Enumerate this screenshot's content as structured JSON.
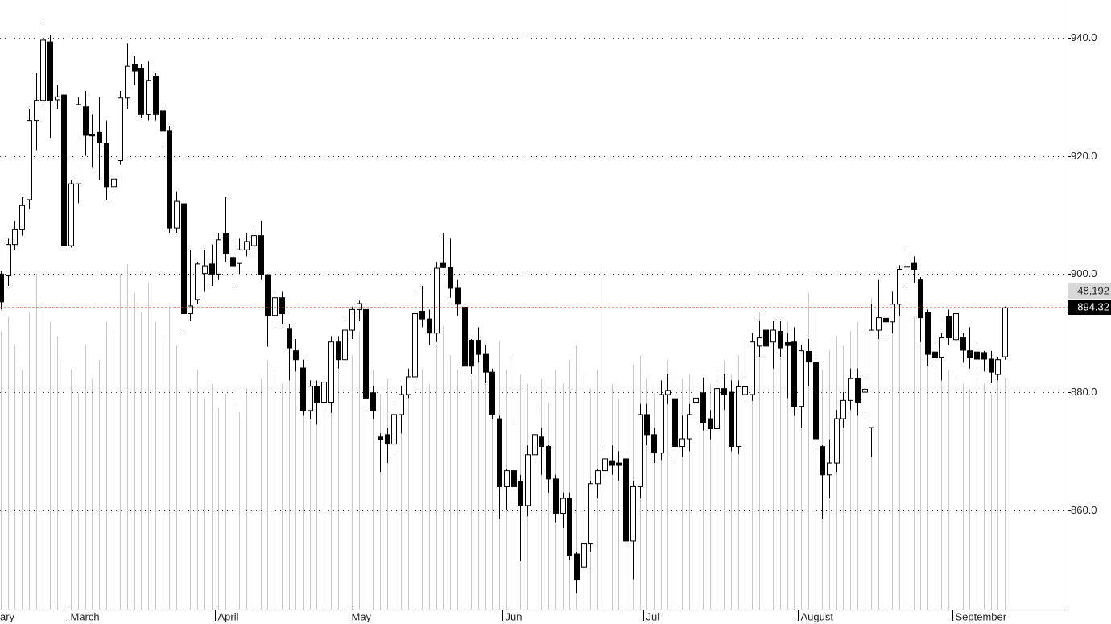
{
  "chart_data": {
    "type": "candlestick",
    "categories": [
      "ary",
      null,
      null,
      null,
      null,
      null,
      null,
      null,
      null,
      null,
      "March",
      null,
      null,
      null,
      null,
      null,
      null,
      null,
      null,
      null,
      null,
      null,
      null,
      null,
      null,
      null,
      null,
      null,
      null,
      null,
      null,
      "April",
      null,
      null,
      null,
      null,
      null,
      null,
      null,
      null,
      null,
      null,
      null,
      null,
      null,
      null,
      null,
      null,
      null,
      null,
      "May",
      null,
      null,
      null,
      null,
      null,
      null,
      null,
      null,
      null,
      null,
      null,
      null,
      null,
      null,
      null,
      null,
      null,
      null,
      null,
      null,
      null,
      "Jun",
      null,
      null,
      null,
      null,
      null,
      null,
      null,
      null,
      null,
      null,
      null,
      null,
      null,
      null,
      null,
      null,
      null,
      null,
      null,
      "Jul",
      null,
      null,
      null,
      null,
      null,
      null,
      null,
      null,
      null,
      null,
      null,
      null,
      null,
      null,
      null,
      null,
      null,
      null,
      null,
      null,
      null,
      "August",
      null,
      null,
      null,
      null,
      null,
      null,
      null,
      null,
      null,
      null,
      null,
      null,
      null,
      null,
      null,
      null,
      null,
      null,
      null,
      null,
      null,
      "September",
      null,
      null,
      null,
      null,
      null,
      null,
      null
    ],
    "open": [
      900,
      899.7,
      905,
      907.5,
      912.6,
      926,
      929.4,
      939.3,
      929.5,
      930.3,
      904.8,
      915.3,
      928.3,
      923.6,
      924,
      922.2,
      914.8,
      919.2,
      929.8,
      935.5,
      934.8,
      927,
      933.4,
      927.6,
      924.2,
      907.8,
      911.9,
      893.3,
      895.7,
      900.1,
      901.7,
      900,
      906.8,
      902.8,
      901.8,
      904.1,
      904.8,
      906.5,
      899.9,
      893,
      896,
      890.8,
      887,
      884.1,
      876.9,
      881,
      878.3,
      878.3,
      888.5,
      885.5,
      890.5,
      894,
      894,
      879.9,
      872.4,
      872.8,
      871.2,
      876.2,
      879.6,
      882.6,
      893.7,
      892.4,
      890,
      901.8,
      901.1,
      897.6,
      894.4,
      888.8,
      888.8,
      886.4,
      883.4,
      875.5,
      864,
      866.7,
      864.9,
      860.8,
      869.4,
      872.4,
      870.8,
      865.3,
      859.5,
      862,
      852.6,
      850.4,
      854.3,
      864.5,
      866.7,
      868.4,
      868,
      868.7,
      854.8,
      864,
      876.2,
      872.8,
      869.7,
      879.6,
      878.9,
      870.8,
      872.1,
      878.3,
      879.9,
      875.5,
      873.8,
      880.6,
      880,
      870.8,
      879.6,
      879.6,
      887.8,
      890.5,
      888.5,
      890.3,
      888.4,
      888.5,
      877.6,
      886.9,
      885.1,
      870.8,
      866,
      868,
      875.5,
      878.6,
      882.3,
      880,
      874,
      890.5,
      892.5,
      891.9,
      894.9,
      901.2,
      901.8,
      899,
      893.5,
      886.8,
      885.8,
      892.8,
      888.9,
      889.2,
      887,
      886.8,
      886.7,
      885.6,
      883,
      886
    ],
    "high": [
      900.5,
      906,
      909,
      913,
      928,
      934,
      943,
      940.5,
      932,
      931,
      916,
      930,
      931,
      927,
      930,
      926,
      920,
      931,
      939,
      937,
      935.5,
      936,
      934,
      928,
      925,
      914,
      912,
      904,
      902,
      904,
      905,
      907,
      913,
      905,
      906,
      907,
      908,
      909,
      900,
      897,
      897,
      891.5,
      889,
      885.5,
      882,
      882,
      883,
      889.5,
      889.5,
      892,
      894.5,
      895.5,
      895,
      881,
      873,
      874,
      878,
      881,
      884,
      897,
      898,
      894,
      902,
      907,
      906,
      899,
      895,
      889,
      891,
      888,
      884,
      876,
      867,
      875,
      866,
      871,
      877,
      874,
      871,
      866,
      863,
      863,
      853,
      855,
      865,
      867,
      871,
      871,
      870,
      870,
      865,
      878,
      878,
      874,
      882,
      883,
      880,
      876,
      878,
      881,
      882.5,
      877,
      882,
      883,
      882,
      882,
      883,
      890,
      892,
      893.5,
      892,
      892,
      890,
      891,
      888,
      889,
      886,
      871,
      872,
      877,
      880,
      884,
      884,
      883,
      895,
      899,
      895,
      897,
      901.5,
      904.5,
      903,
      899.5,
      894,
      888,
      890,
      894,
      894,
      890,
      891,
      888,
      887,
      887,
      886,
      894.5
    ],
    "low": [
      894,
      898,
      904,
      906.5,
      911,
      921,
      928,
      923,
      928,
      904.8,
      904.5,
      912,
      920,
      918,
      916,
      912.5,
      912,
      918.5,
      928,
      932,
      926.5,
      926,
      926,
      922,
      907,
      907,
      890.5,
      892,
      895,
      897,
      898,
      899,
      902,
      898,
      900,
      903,
      903,
      899,
      887.7,
      891.7,
      891.5,
      882,
      883.5,
      876,
      875.5,
      874.5,
      877,
      876.5,
      884,
      884.5,
      889,
      892,
      877,
      875.5,
      866.5,
      868,
      870,
      873,
      879,
      882,
      891,
      888,
      888.5,
      901,
      896,
      893,
      884,
      883,
      885,
      881.5,
      875.5,
      858.5,
      860,
      861,
      851.4,
      859,
      868,
      866,
      863,
      858,
      857,
      851.5,
      846,
      850,
      853,
      862,
      865,
      866,
      865,
      854,
      848.3,
      862,
      871,
      868,
      868.5,
      878,
      868,
      869,
      870,
      876,
      873.5,
      872,
      872,
      877,
      870,
      869.5,
      878,
      878.5,
      886,
      886,
      884,
      886,
      879,
      876,
      874,
      881,
      870.5,
      858.5,
      862,
      866.5,
      874,
      877,
      876,
      876,
      869,
      889,
      889,
      890,
      893,
      898,
      898.5,
      888.5,
      884.5,
      884,
      882,
      888,
      888,
      885,
      884,
      884,
      883.5,
      881.5,
      882,
      885.5
    ],
    "close": [
      895.3,
      905,
      907.5,
      911.6,
      926,
      929.4,
      939.6,
      929.4,
      930,
      904.8,
      915.3,
      928.7,
      923.5,
      923.4,
      922.2,
      914.8,
      916.1,
      929.8,
      935.2,
      934.4,
      927,
      932.8,
      927,
      924.2,
      907.8,
      912.3,
      893.3,
      894.6,
      901.7,
      901.4,
      900,
      905.8,
      903.4,
      901.4,
      904.1,
      905.5,
      906.5,
      899.9,
      893,
      896,
      893.3,
      887.5,
      885.5,
      876.9,
      881,
      878.3,
      881.7,
      888.5,
      885.5,
      890.5,
      894,
      895,
      879,
      876.9,
      872,
      871.2,
      876.2,
      879.6,
      882.6,
      893.3,
      892.4,
      890,
      901,
      901.1,
      897.6,
      894.9,
      884.4,
      884.4,
      886.4,
      883.4,
      876.2,
      864,
      866.7,
      864,
      860.8,
      869.4,
      872.8,
      870.8,
      865.3,
      859.5,
      862,
      852.4,
      848.3,
      854.3,
      864.5,
      866.7,
      868.7,
      867.6,
      867.6,
      854.8,
      864,
      876.2,
      872.8,
      869.7,
      879.6,
      880.3,
      870.8,
      872.1,
      876.2,
      879,
      874.9,
      873.8,
      880.6,
      879.6,
      870.8,
      880.9,
      880.9,
      888.5,
      889.2,
      887.8,
      890.5,
      887.5,
      887.9,
      877.6,
      887,
      885.1,
      872.1,
      866,
      868,
      875.5,
      878.6,
      882.3,
      878.3,
      880.5,
      890.5,
      892.6,
      891.9,
      894.9,
      900.8,
      901.3,
      900.8,
      892.6,
      886.4,
      885.8,
      889.2,
      889.2,
      893.3,
      887.1,
      885.8,
      885.6,
      885.6,
      883.4,
      885.5,
      894.32
    ],
    "volume": [
      58000,
      61000,
      55000,
      50000,
      62000,
      70000,
      64000,
      60000,
      57000,
      52000,
      50000,
      45000,
      55000,
      48000,
      52000,
      60000,
      58000,
      70000,
      72000,
      66000,
      62000,
      68000,
      60000,
      57000,
      63000,
      55000,
      58000,
      46000,
      50000,
      44000,
      47000,
      42000,
      45000,
      43000,
      41000,
      46000,
      44000,
      48000,
      52000,
      50000,
      47000,
      55000,
      51000,
      49000,
      44000,
      46000,
      42000,
      47000,
      50000,
      45000,
      53000,
      58000,
      56000,
      50000,
      45000,
      48000,
      43000,
      46000,
      44000,
      52000,
      50000,
      47000,
      55000,
      59000,
      53000,
      50000,
      52000,
      48000,
      54000,
      51000,
      47000,
      56000,
      50000,
      53000,
      49000,
      47000,
      45000,
      48000,
      43000,
      50000,
      47000,
      52000,
      55000,
      49000,
      46000,
      50000,
      72000,
      47000,
      44000,
      46000,
      51000,
      53000,
      48000,
      45000,
      47000,
      52000,
      50000,
      48000,
      49000,
      46000,
      44000,
      47000,
      50000,
      52000,
      49000,
      53000,
      56000,
      55000,
      62000,
      58000,
      54000,
      57000,
      60000,
      59000,
      55000,
      66000,
      62000,
      50000,
      54000,
      57000,
      55000,
      58000,
      60000,
      64000,
      65000,
      62000,
      59000,
      63000,
      66000,
      64000,
      61000,
      57000,
      60000,
      54000,
      52000,
      50000,
      49000,
      47000,
      46000,
      48000,
      47000,
      45000,
      50000,
      48192
    ],
    "last_volume": {
      "value": 48192,
      "label": "48,192"
    },
    "volume_lim": [
      0,
      127000
    ],
    "ylim": [
      843.2,
      946.4
    ],
    "yticks": [
      {
        "value": 860,
        "label": "860.0"
      },
      {
        "value": 880,
        "label": "880.0"
      },
      {
        "value": 900,
        "label": "900.0"
      },
      {
        "value": 920,
        "label": "920.0"
      },
      {
        "value": 940,
        "label": "940.0"
      }
    ],
    "grid": true,
    "up_color": "#ffffff",
    "down_color": "#000000",
    "volume_color": "#c8c8c8",
    "last_price_color": "#e03030"
  }
}
